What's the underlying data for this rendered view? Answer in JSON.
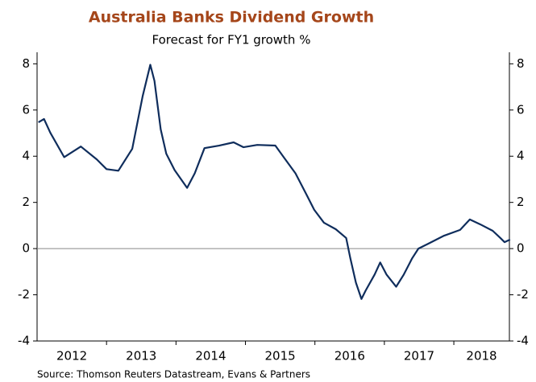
{
  "chart_data": {
    "type": "line",
    "title": "Australia Banks Dividend Growth",
    "subtitle": "Forecast for FY1 growth %",
    "source": "Source: Thomson Reuters Datastream, Evans & Partners",
    "x": [
      2012.02,
      2012.1,
      2012.19,
      2012.39,
      2012.63,
      2012.86,
      2013.0,
      2013.17,
      2013.37,
      2013.52,
      2013.63,
      2013.69,
      2013.78,
      2013.86,
      2013.98,
      2014.16,
      2014.27,
      2014.41,
      2014.62,
      2014.83,
      2014.97,
      2015.17,
      2015.43,
      2015.55,
      2015.72,
      2015.87,
      2015.99,
      2016.13,
      2016.3,
      2016.45,
      2016.51,
      2016.59,
      2016.67,
      2016.73,
      2016.86,
      2016.94,
      2017.03,
      2017.17,
      2017.28,
      2017.4,
      2017.49,
      2017.63,
      2017.86,
      2018.09,
      2018.23,
      2018.38,
      2018.56,
      2018.67,
      2018.73,
      2018.81
    ],
    "series": [
      {
        "name": "Forecast FY1 growth",
        "color": "#0f2d5c",
        "values": [
          5.47,
          5.61,
          5.02,
          3.96,
          4.42,
          3.86,
          3.44,
          3.37,
          4.32,
          6.6,
          7.96,
          7.26,
          5.16,
          4.11,
          3.4,
          2.63,
          3.26,
          4.35,
          4.46,
          4.6,
          4.39,
          4.49,
          4.46,
          3.96,
          3.26,
          2.39,
          1.68,
          1.12,
          0.84,
          0.46,
          -0.42,
          -1.47,
          -2.18,
          -1.82,
          -1.12,
          -0.6,
          -1.12,
          -1.65,
          -1.12,
          -0.42,
          0.0,
          0.21,
          0.56,
          0.81,
          1.26,
          1.05,
          0.77,
          0.46,
          0.28,
          0.39
        ]
      }
    ],
    "xlim": [
      2012,
      2018.8
    ],
    "xticks": [
      {
        "value": 2012.5,
        "label": "2012"
      },
      {
        "value": 2013.5,
        "label": "2013"
      },
      {
        "value": 2014.5,
        "label": "2014"
      },
      {
        "value": 2015.5,
        "label": "2015"
      },
      {
        "value": 2016.5,
        "label": "2016"
      },
      {
        "value": 2017.5,
        "label": "2017"
      },
      {
        "value": 2018.4,
        "label": "2018"
      }
    ],
    "xminorticks": [
      2013,
      2014,
      2015,
      2016,
      2017,
      2018
    ],
    "ylim": [
      -4,
      8.5
    ],
    "yticks": [
      -4,
      -2,
      0,
      2,
      4,
      6,
      8
    ],
    "zero_line": true
  }
}
